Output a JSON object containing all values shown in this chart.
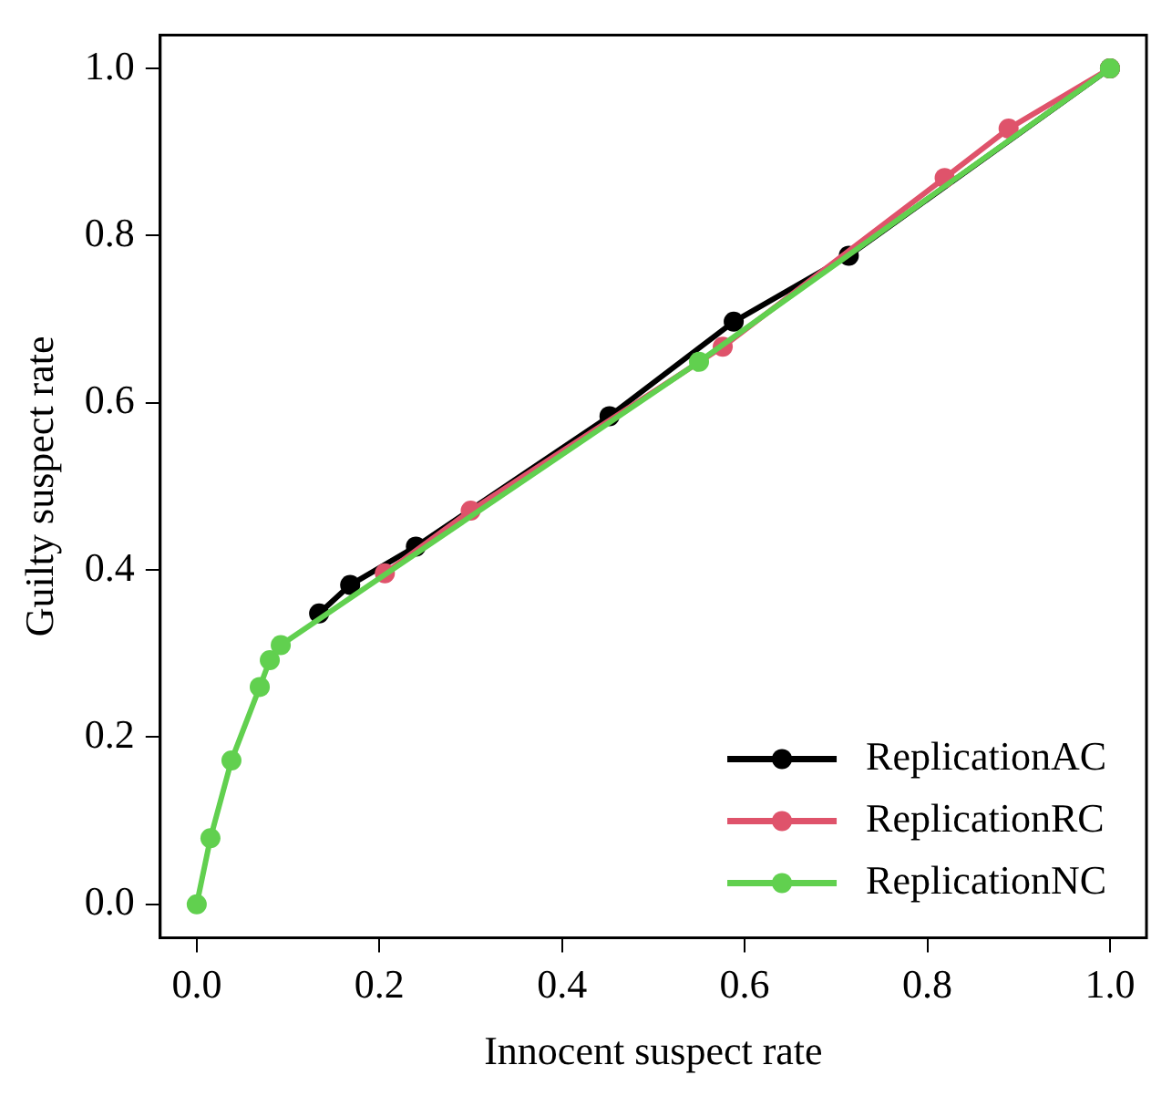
{
  "chart_data": {
    "type": "line",
    "xlabel": "Innocent suspect rate",
    "ylabel": "Guilty suspect rate",
    "xlim": [
      -0.04,
      1.04
    ],
    "ylim": [
      -0.04,
      1.04
    ],
    "xticks": [
      {
        "value": 0,
        "label": "0.0"
      },
      0.2,
      0.4,
      0.6,
      0.8,
      {
        "value": 1,
        "label": "1.0"
      }
    ],
    "yticks": [
      {
        "value": 0,
        "label": "0.0"
      },
      0.2,
      0.4,
      0.6,
      0.8,
      {
        "value": 1,
        "label": "1.0"
      }
    ],
    "grid": false,
    "legend": "bottom right",
    "marker": "circle",
    "line_style": "solid",
    "series": [
      {
        "name": "ReplicationAC",
        "color": "#000000",
        "x": [
          0.134,
          0.168,
          0.24,
          0.452,
          0.588,
          0.714,
          1
        ],
        "values": [
          0.348,
          0.382,
          0.428,
          0.584,
          0.697,
          0.776,
          1
        ]
      },
      {
        "name": "ReplicationRC",
        "color": "#df536b",
        "x": [
          0.206,
          0.3,
          0.576,
          0.819,
          0.889,
          1
        ],
        "values": [
          0.396,
          0.471,
          0.667,
          0.869,
          0.928,
          1
        ]
      },
      {
        "name": "ReplicationNC",
        "color": "#61d04f",
        "x": [
          0,
          0.015,
          0.038,
          0.069,
          0.08,
          0.092,
          0.55,
          1
        ],
        "values": [
          0,
          0.079,
          0.172,
          0.26,
          0.292,
          0.31,
          0.649,
          1
        ]
      }
    ]
  }
}
